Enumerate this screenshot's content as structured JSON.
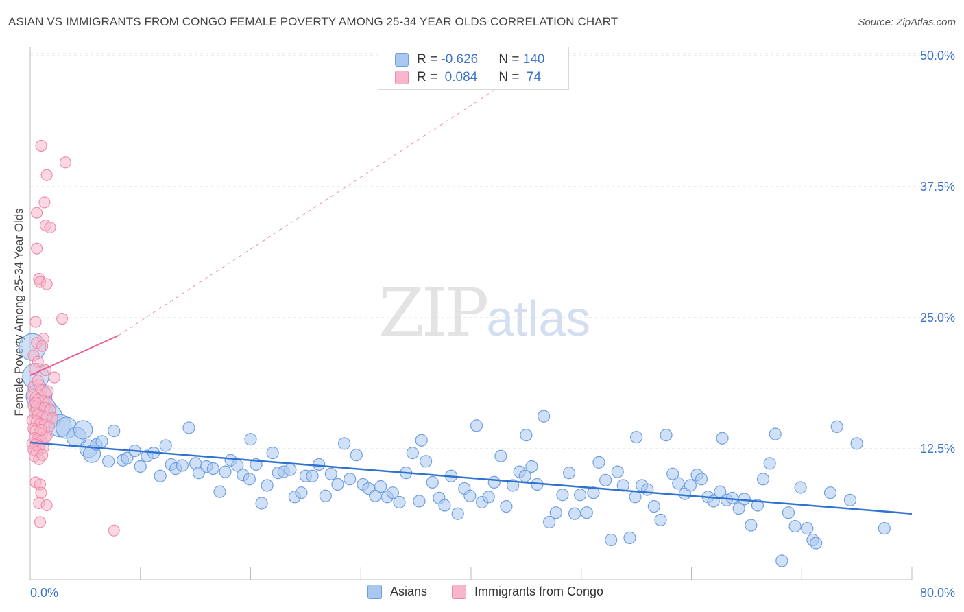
{
  "title": "ASIAN VS IMMIGRANTS FROM CONGO FEMALE POVERTY AMONG 25-34 YEAR OLDS CORRELATION CHART",
  "source": "Source: ZipAtlas.com",
  "watermark": {
    "zip": "ZIP",
    "atlas": "atlas"
  },
  "legend": {
    "asians": {
      "r_label": "R = ",
      "r_value": "-0.626",
      "n_label": "N = ",
      "n_value": "140"
    },
    "congo": {
      "r_label": "R = ",
      "r_value": " 0.084",
      "n_label": "N = ",
      "n_value": " 74"
    }
  },
  "bottom_legend": {
    "asians": "Asians",
    "congo": "Immigrants from Congo"
  },
  "colors": {
    "asian_fill": "#a9c8f0",
    "asian_stroke": "#6f9fe0",
    "asian_line": "#2f72d0",
    "congo_fill": "#f7b6cb",
    "congo_stroke": "#ee88a8",
    "congo_line": "#e8608c",
    "tick_text": "#3a73c9",
    "grid": "#dcdcdc"
  },
  "chart_data": {
    "type": "scatter",
    "title": "ASIAN VS IMMIGRANTS FROM CONGO FEMALE POVERTY AMONG 25-34 YEAR OLDS CORRELATION CHART",
    "xlabel": "",
    "ylabel": "Female Poverty Among 25-34 Year Olds",
    "xlim": [
      0,
      80
    ],
    "ylim": [
      0,
      50
    ],
    "x_tick_labels": [
      "0.0%",
      "80.0%"
    ],
    "y_ticks": [
      12.5,
      25.0,
      37.5,
      50.0
    ],
    "y_tick_labels": [
      "12.5%",
      "25.0%",
      "37.5%",
      "50.0%"
    ],
    "series": [
      {
        "name": "Asians",
        "R": -0.626,
        "N": 140,
        "trend": {
          "x": [
            0,
            80
          ],
          "y": [
            13.1,
            6.3
          ],
          "style": "solid"
        },
        "points": [
          [
            0.2,
            22.2
          ],
          [
            0.5,
            19.4
          ],
          [
            0.8,
            17.5
          ],
          [
            1.2,
            16.3
          ],
          [
            1.8,
            15.6
          ],
          [
            2.7,
            14.7
          ],
          [
            3.3,
            14.5
          ],
          [
            4.2,
            13.6
          ],
          [
            4.8,
            14.3
          ],
          [
            5.3,
            12.5
          ],
          [
            5.6,
            12.0
          ],
          [
            6.0,
            12.9
          ],
          [
            6.5,
            13.2
          ],
          [
            7.1,
            11.3
          ],
          [
            7.6,
            14.2
          ],
          [
            8.4,
            11.4
          ],
          [
            8.8,
            11.6
          ],
          [
            9.5,
            12.3
          ],
          [
            10.0,
            10.8
          ],
          [
            10.6,
            11.8
          ],
          [
            11.2,
            12.1
          ],
          [
            11.8,
            9.9
          ],
          [
            12.3,
            12.8
          ],
          [
            12.8,
            11.0
          ],
          [
            13.2,
            10.6
          ],
          [
            13.8,
            10.9
          ],
          [
            14.4,
            14.5
          ],
          [
            15.0,
            11.1
          ],
          [
            15.3,
            10.2
          ],
          [
            16.0,
            10.8
          ],
          [
            16.6,
            10.6
          ],
          [
            17.2,
            8.4
          ],
          [
            17.7,
            10.3
          ],
          [
            18.2,
            11.4
          ],
          [
            18.8,
            10.9
          ],
          [
            19.3,
            10.0
          ],
          [
            19.9,
            9.6
          ],
          [
            20.5,
            11.0
          ],
          [
            21.0,
            7.3
          ],
          [
            21.5,
            9.0
          ],
          [
            22.0,
            12.1
          ],
          [
            22.5,
            10.2
          ],
          [
            23.0,
            10.3
          ],
          [
            23.6,
            10.5
          ],
          [
            24.0,
            7.9
          ],
          [
            24.6,
            8.3
          ],
          [
            25.0,
            9.9
          ],
          [
            25.6,
            9.9
          ],
          [
            26.2,
            11.0
          ],
          [
            26.8,
            8.0
          ],
          [
            27.3,
            10.1
          ],
          [
            27.9,
            9.1
          ],
          [
            28.5,
            13.0
          ],
          [
            29.0,
            9.6
          ],
          [
            29.6,
            11.9
          ],
          [
            30.2,
            9.1
          ],
          [
            30.7,
            8.7
          ],
          [
            31.3,
            8.0
          ],
          [
            31.8,
            8.9
          ],
          [
            32.4,
            7.9
          ],
          [
            32.9,
            8.3
          ],
          [
            33.5,
            7.4
          ],
          [
            34.1,
            10.2
          ],
          [
            34.7,
            12.1
          ],
          [
            35.3,
            7.5
          ],
          [
            35.9,
            11.3
          ],
          [
            36.5,
            9.3
          ],
          [
            37.1,
            7.8
          ],
          [
            37.6,
            7.1
          ],
          [
            38.2,
            9.9
          ],
          [
            38.8,
            6.3
          ],
          [
            39.4,
            8.7
          ],
          [
            39.9,
            8.0
          ],
          [
            40.5,
            14.7
          ],
          [
            41.0,
            7.4
          ],
          [
            41.6,
            7.9
          ],
          [
            42.1,
            9.3
          ],
          [
            42.7,
            11.8
          ],
          [
            43.2,
            7.0
          ],
          [
            43.8,
            9.0
          ],
          [
            44.4,
            10.3
          ],
          [
            44.9,
            9.9
          ],
          [
            45.5,
            10.8
          ],
          [
            46.0,
            9.1
          ],
          [
            46.6,
            15.6
          ],
          [
            47.1,
            5.5
          ],
          [
            47.7,
            6.4
          ],
          [
            48.3,
            8.1
          ],
          [
            48.9,
            10.2
          ],
          [
            49.4,
            6.3
          ],
          [
            49.9,
            8.1
          ],
          [
            50.5,
            6.4
          ],
          [
            51.1,
            8.3
          ],
          [
            51.6,
            11.2
          ],
          [
            52.2,
            9.5
          ],
          [
            52.7,
            3.8
          ],
          [
            53.3,
            10.3
          ],
          [
            53.8,
            9.0
          ],
          [
            54.4,
            4.0
          ],
          [
            54.9,
            7.9
          ],
          [
            55.5,
            9.0
          ],
          [
            56.0,
            8.6
          ],
          [
            56.6,
            7.0
          ],
          [
            57.2,
            5.7
          ],
          [
            57.7,
            13.8
          ],
          [
            58.3,
            10.1
          ],
          [
            58.8,
            9.2
          ],
          [
            59.4,
            8.2
          ],
          [
            59.9,
            9.0
          ],
          [
            60.5,
            10.0
          ],
          [
            60.9,
            9.6
          ],
          [
            61.5,
            7.9
          ],
          [
            62.0,
            7.5
          ],
          [
            62.6,
            8.4
          ],
          [
            63.2,
            7.6
          ],
          [
            63.7,
            7.8
          ],
          [
            64.3,
            6.8
          ],
          [
            64.8,
            7.7
          ],
          [
            65.4,
            5.2
          ],
          [
            66.0,
            7.1
          ],
          [
            66.5,
            9.6
          ],
          [
            67.1,
            11.1
          ],
          [
            67.6,
            13.9
          ],
          [
            68.2,
            1.8
          ],
          [
            68.8,
            6.4
          ],
          [
            69.4,
            5.1
          ],
          [
            69.9,
            8.8
          ],
          [
            70.5,
            4.9
          ],
          [
            71.0,
            3.8
          ],
          [
            71.3,
            3.5
          ],
          [
            72.6,
            8.3
          ],
          [
            73.2,
            14.6
          ],
          [
            74.4,
            7.6
          ],
          [
            77.5,
            4.9
          ],
          [
            35.5,
            13.3
          ],
          [
            45.0,
            13.8
          ],
          [
            55.0,
            13.6
          ],
          [
            75.0,
            13.0
          ],
          [
            20.0,
            13.4
          ],
          [
            62.8,
            13.5
          ]
        ]
      },
      {
        "name": "Immigrants from Congo",
        "R": 0.084,
        "N": 74,
        "trend": {
          "x": [
            0,
            8
          ],
          "y": [
            19.5,
            23.3
          ],
          "style": "solid",
          "extended": {
            "x": [
              8,
              44
            ],
            "y": [
              23.3,
              48.0
            ],
            "style": "dashed"
          }
        },
        "points": [
          [
            1.0,
            41.4
          ],
          [
            3.2,
            39.8
          ],
          [
            1.5,
            38.6
          ],
          [
            1.3,
            36.0
          ],
          [
            0.6,
            35.0
          ],
          [
            1.4,
            33.8
          ],
          [
            1.8,
            33.6
          ],
          [
            0.6,
            31.6
          ],
          [
            0.8,
            28.7
          ],
          [
            0.9,
            28.4
          ],
          [
            1.5,
            28.2
          ],
          [
            0.5,
            24.6
          ],
          [
            2.9,
            24.9
          ],
          [
            0.6,
            22.6
          ],
          [
            1.2,
            23.0
          ],
          [
            1.1,
            22.3
          ],
          [
            0.3,
            21.4
          ],
          [
            0.7,
            20.8
          ],
          [
            0.4,
            20.1
          ],
          [
            1.4,
            20.0
          ],
          [
            2.2,
            19.3
          ],
          [
            0.3,
            18.4
          ],
          [
            0.8,
            18.6
          ],
          [
            1.0,
            18.1
          ],
          [
            1.4,
            17.8
          ],
          [
            0.2,
            17.6
          ],
          [
            0.5,
            17.4
          ],
          [
            0.7,
            17.2
          ],
          [
            1.2,
            17.1
          ],
          [
            1.6,
            16.9
          ],
          [
            0.3,
            16.6
          ],
          [
            0.6,
            16.5
          ],
          [
            0.9,
            16.3
          ],
          [
            1.3,
            16.4
          ],
          [
            1.8,
            16.2
          ],
          [
            0.4,
            15.9
          ],
          [
            0.7,
            15.7
          ],
          [
            1.1,
            15.6
          ],
          [
            1.5,
            15.5
          ],
          [
            2.0,
            15.4
          ],
          [
            0.2,
            15.2
          ],
          [
            0.6,
            15.1
          ],
          [
            0.9,
            14.9
          ],
          [
            1.3,
            14.8
          ],
          [
            1.7,
            14.6
          ],
          [
            0.3,
            14.4
          ],
          [
            0.5,
            14.2
          ],
          [
            0.8,
            14.0
          ],
          [
            1.1,
            13.9
          ],
          [
            1.5,
            13.7
          ],
          [
            0.4,
            13.5
          ],
          [
            0.7,
            13.4
          ],
          [
            1.0,
            13.2
          ],
          [
            1.4,
            13.6
          ],
          [
            0.2,
            13.0
          ],
          [
            0.5,
            12.9
          ],
          [
            0.8,
            12.7
          ],
          [
            1.2,
            12.6
          ],
          [
            0.3,
            12.4
          ],
          [
            0.6,
            12.2
          ],
          [
            0.4,
            11.8
          ],
          [
            0.8,
            11.5
          ],
          [
            1.1,
            11.9
          ],
          [
            0.5,
            9.3
          ],
          [
            0.9,
            9.1
          ],
          [
            1.0,
            8.3
          ],
          [
            0.8,
            7.3
          ],
          [
            1.5,
            7.1
          ],
          [
            0.9,
            5.5
          ],
          [
            7.6,
            4.7
          ],
          [
            0.5,
            16.9
          ],
          [
            1.0,
            14.3
          ],
          [
            1.6,
            18.0
          ],
          [
            0.7,
            19.0
          ]
        ]
      }
    ]
  }
}
